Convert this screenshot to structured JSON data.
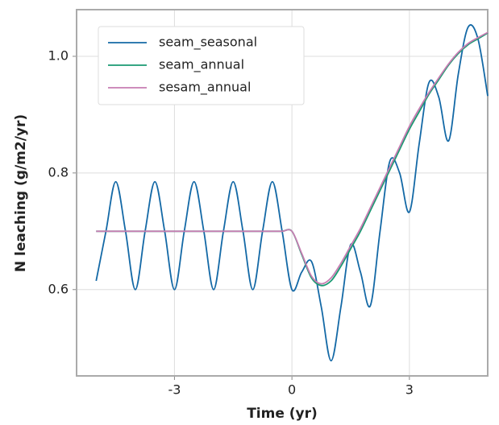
{
  "chart_data": {
    "type": "line",
    "x_label": "Time (yr)",
    "y_label": "N leaching (g/m2/yr)",
    "x": [
      -5,
      -4.75,
      -4.5,
      -4.25,
      -4,
      -3.75,
      -3.5,
      -3.25,
      -3,
      -2.75,
      -2.5,
      -2.25,
      -2,
      -1.75,
      -1.5,
      -1.25,
      -1,
      -0.75,
      -0.5,
      -0.25,
      0,
      0.25,
      0.5,
      0.75,
      1,
      1.25,
      1.5,
      1.75,
      2,
      2.25,
      2.5,
      2.75,
      3,
      3.25,
      3.5,
      3.75,
      4,
      4.25,
      4.5,
      4.75,
      5
    ],
    "series": [
      {
        "name": "seam_seasonal",
        "color": "#1469a6",
        "values": [
          0.615,
          0.7,
          0.785,
          0.7,
          0.6,
          0.7,
          0.785,
          0.7,
          0.6,
          0.7,
          0.785,
          0.7,
          0.6,
          0.7,
          0.785,
          0.7,
          0.6,
          0.7,
          0.785,
          0.7,
          0.6,
          0.63,
          0.648,
          0.57,
          0.478,
          0.57,
          0.677,
          0.63,
          0.572,
          0.7,
          0.82,
          0.8,
          0.733,
          0.85,
          0.955,
          0.93,
          0.855,
          0.97,
          1.05,
          1.03,
          0.932
        ]
      },
      {
        "name": "seam_annual",
        "color": "#1a9a72",
        "values": [
          0.7,
          0.7,
          0.7,
          0.7,
          0.7,
          0.7,
          0.7,
          0.7,
          0.7,
          0.7,
          0.7,
          0.7,
          0.7,
          0.7,
          0.7,
          0.7,
          0.7,
          0.7,
          0.7,
          0.7,
          0.7,
          0.66,
          0.62,
          0.607,
          0.615,
          0.64,
          0.67,
          0.7,
          0.735,
          0.77,
          0.805,
          0.84,
          0.875,
          0.905,
          0.935,
          0.96,
          0.985,
          1.005,
          1.02,
          1.03,
          1.04
        ]
      },
      {
        "name": "sesam_annual",
        "color": "#c77db2",
        "values": [
          0.7,
          0.7,
          0.7,
          0.7,
          0.7,
          0.7,
          0.7,
          0.7,
          0.7,
          0.7,
          0.7,
          0.7,
          0.7,
          0.7,
          0.7,
          0.7,
          0.7,
          0.7,
          0.7,
          0.7,
          0.7,
          0.662,
          0.623,
          0.61,
          0.62,
          0.645,
          0.675,
          0.705,
          0.74,
          0.775,
          0.81,
          0.845,
          0.88,
          0.91,
          0.938,
          0.963,
          0.987,
          1.007,
          1.022,
          1.032,
          1.041
        ]
      }
    ],
    "xlim": [
      -5.5,
      5
    ],
    "ylim": [
      0.452,
      1.08
    ],
    "xticks": [
      -3,
      0,
      3
    ],
    "yticks": [
      0.6,
      0.8,
      {
        "value": 1,
        "label": "1.0"
      }
    ],
    "grid": true,
    "legend": "upper left"
  }
}
